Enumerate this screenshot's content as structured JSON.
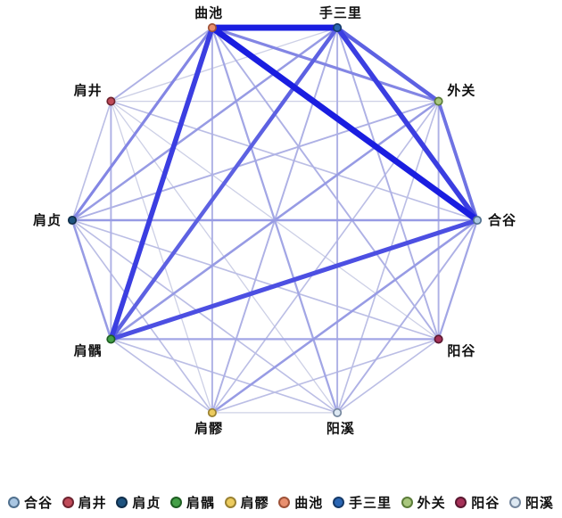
{
  "figure": {
    "background": "#ffffff",
    "label_color": "#111111"
  },
  "chart_data": {
    "type": "network",
    "layout": "circular",
    "title": "",
    "edge_color_scale": {
      "min_color": "#cdd0e6",
      "max_color": "#1a1ee0"
    },
    "nodes": [
      {
        "label": "合谷",
        "angle": 0,
        "color": "#a9c6e2",
        "border": "#50708e"
      },
      {
        "label": "阳谷",
        "angle": 36,
        "color": "#a63158",
        "border": "#5a1830"
      },
      {
        "label": "阳溪",
        "angle": 72,
        "color": "#dde8f2",
        "border": "#75879e"
      },
      {
        "label": "肩髎",
        "angle": 108,
        "color": "#eccb5e",
        "border": "#9a8232"
      },
      {
        "label": "肩髃",
        "angle": 144,
        "color": "#44a047",
        "border": "#1e5e22"
      },
      {
        "label": "肩贞",
        "angle": 180,
        "color": "#1e537f",
        "border": "#102e4a"
      },
      {
        "label": "肩井",
        "angle": 216,
        "color": "#c04a58",
        "border": "#6e2430"
      },
      {
        "label": "曲池",
        "angle": 252,
        "color": "#e9906f",
        "border": "#9e5238"
      },
      {
        "label": "手三里",
        "angle": 288,
        "color": "#2a66b4",
        "border": "#163a68"
      },
      {
        "label": "外关",
        "angle": 324,
        "color": "#a9c77d",
        "border": "#5c7d39"
      }
    ],
    "edges": [
      {
        "a": "合谷",
        "b": "曲池",
        "weight": 10
      },
      {
        "a": "曲池",
        "b": "手三里",
        "weight": 10
      },
      {
        "a": "合谷",
        "b": "手三里",
        "weight": 8
      },
      {
        "a": "肩髃",
        "b": "曲池",
        "weight": 8
      },
      {
        "a": "合谷",
        "b": "肩髃",
        "weight": 7
      },
      {
        "a": "肩髃",
        "b": "手三里",
        "weight": 6
      },
      {
        "a": "手三里",
        "b": "外关",
        "weight": 6
      },
      {
        "a": "合谷",
        "b": "外关",
        "weight": 5
      },
      {
        "a": "肩贞",
        "b": "曲池",
        "weight": 4
      },
      {
        "a": "曲池",
        "b": "外关",
        "weight": 4
      },
      {
        "a": "合谷",
        "b": "肩贞",
        "weight": 3
      },
      {
        "a": "合谷",
        "b": "肩髎",
        "weight": 3
      },
      {
        "a": "肩髃",
        "b": "肩贞",
        "weight": 3
      },
      {
        "a": "肩贞",
        "b": "手三里",
        "weight": 3
      },
      {
        "a": "肩髃",
        "b": "外关",
        "weight": 3
      },
      {
        "a": "合谷",
        "b": "阳谷",
        "weight": 2.5
      },
      {
        "a": "阳谷",
        "b": "肩髃",
        "weight": 2.5
      },
      {
        "a": "阳溪",
        "b": "曲池",
        "weight": 2.5
      },
      {
        "a": "合谷",
        "b": "阳溪",
        "weight": 2
      },
      {
        "a": "阳谷",
        "b": "曲池",
        "weight": 2
      },
      {
        "a": "阳谷",
        "b": "手三里",
        "weight": 2
      },
      {
        "a": "阳谷",
        "b": "外关",
        "weight": 2
      },
      {
        "a": "阳溪",
        "b": "手三里",
        "weight": 2
      },
      {
        "a": "肩髎",
        "b": "曲池",
        "weight": 2
      },
      {
        "a": "肩髎",
        "b": "手三里",
        "weight": 2
      },
      {
        "a": "肩髃",
        "b": "肩井",
        "weight": 2
      },
      {
        "a": "肩贞",
        "b": "外关",
        "weight": 2
      },
      {
        "a": "肩井",
        "b": "曲池",
        "weight": 2
      },
      {
        "a": "合谷",
        "b": "肩井",
        "weight": 1.5
      },
      {
        "a": "阳谷",
        "b": "阳溪",
        "weight": 1.5
      },
      {
        "a": "阳谷",
        "b": "肩髎",
        "weight": 1.5
      },
      {
        "a": "阳谷",
        "b": "肩贞",
        "weight": 1.5
      },
      {
        "a": "阳溪",
        "b": "肩髃",
        "weight": 1.5
      },
      {
        "a": "阳溪",
        "b": "肩贞",
        "weight": 1.5
      },
      {
        "a": "阳溪",
        "b": "外关",
        "weight": 1.5
      },
      {
        "a": "肩髎",
        "b": "肩髃",
        "weight": 1.5
      },
      {
        "a": "肩髎",
        "b": "肩贞",
        "weight": 1.5
      },
      {
        "a": "肩髎",
        "b": "外关",
        "weight": 1.5
      },
      {
        "a": "肩贞",
        "b": "肩井",
        "weight": 1.5
      },
      {
        "a": "阳谷",
        "b": "肩井",
        "weight": 1
      },
      {
        "a": "阳溪",
        "b": "肩髎",
        "weight": 1
      },
      {
        "a": "阳溪",
        "b": "肩井",
        "weight": 1
      },
      {
        "a": "肩髎",
        "b": "肩井",
        "weight": 1
      },
      {
        "a": "肩井",
        "b": "手三里",
        "weight": 1
      },
      {
        "a": "肩井",
        "b": "外关",
        "weight": 1
      }
    ],
    "legend": [
      "合谷",
      "肩井",
      "肩贞",
      "肩髃",
      "肩髎",
      "曲池",
      "手三里",
      "外关",
      "阳谷",
      "阳溪"
    ]
  }
}
